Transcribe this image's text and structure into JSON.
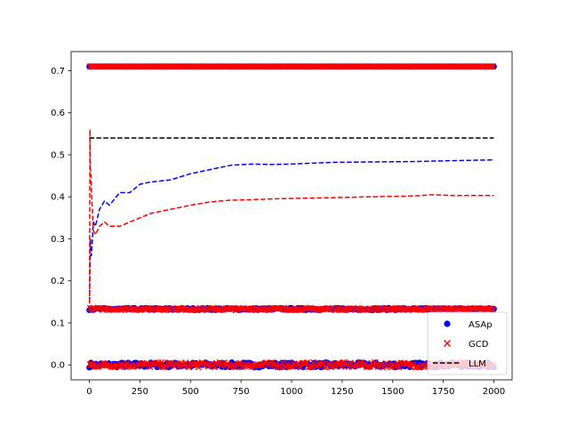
{
  "chart_data": {
    "type": "scatter",
    "title": "",
    "xlabel": "",
    "ylabel": "",
    "xlim": [
      -90,
      2090
    ],
    "ylim": [
      -0.0355,
      0.7455
    ],
    "xticks": [
      0,
      250,
      500,
      750,
      1000,
      1250,
      1500,
      1750,
      2000
    ],
    "yticks": [
      0.0,
      0.1,
      0.2,
      0.3,
      0.4,
      0.5,
      0.6,
      0.7
    ],
    "xtick_labels": [
      "0",
      "250",
      "500",
      "750",
      "1000",
      "1250",
      "1500",
      "1750",
      "2000"
    ],
    "ytick_labels": [
      "0.0",
      "0.1",
      "0.2",
      "0.3",
      "0.4",
      "0.5",
      "0.6",
      "0.7"
    ],
    "grid": false,
    "legend_position": "lower-right",
    "series": [
      {
        "name": "ASAp",
        "kind": "markers",
        "marker": "circle",
        "color": "#0000ff",
        "x_range": [
          0,
          2000
        ],
        "y_levels": [
          0.0,
          0.133,
          0.71
        ]
      },
      {
        "name": "GCD",
        "kind": "markers",
        "marker": "x",
        "color": "#ff0000",
        "x_range": [
          0,
          2000
        ],
        "y_levels": [
          0.0,
          0.133,
          0.71
        ]
      },
      {
        "name": "LLM",
        "kind": "line",
        "style": "dashed",
        "color": "#000000",
        "x": [
          0,
          2000
        ],
        "y": [
          0.54,
          0.54
        ]
      },
      {
        "kind": "line",
        "style": "dashed",
        "color": "#0000ff",
        "x": [
          1,
          5,
          10,
          20,
          30,
          50,
          75,
          100,
          150,
          200,
          250,
          300,
          400,
          500,
          600,
          700,
          800,
          900,
          1000,
          1200,
          1400,
          1600,
          1800,
          2000
        ],
        "y": [
          0.15,
          0.3,
          0.26,
          0.34,
          0.33,
          0.37,
          0.39,
          0.38,
          0.41,
          0.41,
          0.43,
          0.435,
          0.44,
          0.455,
          0.465,
          0.475,
          0.478,
          0.477,
          0.478,
          0.482,
          0.483,
          0.484,
          0.486,
          0.488
        ]
      },
      {
        "kind": "line",
        "style": "dashed",
        "color": "#ff0000",
        "x": [
          1,
          3,
          5,
          8,
          12,
          20,
          30,
          50,
          75,
          100,
          150,
          200,
          250,
          300,
          400,
          500,
          600,
          700,
          800,
          900,
          1000,
          1200,
          1400,
          1600,
          1700,
          1800,
          2000
        ],
        "y": [
          0.13,
          0.56,
          0.47,
          0.45,
          0.4,
          0.32,
          0.31,
          0.33,
          0.34,
          0.33,
          0.33,
          0.34,
          0.35,
          0.36,
          0.37,
          0.38,
          0.388,
          0.392,
          0.393,
          0.395,
          0.396,
          0.398,
          0.4,
          0.402,
          0.405,
          0.403,
          0.403
        ]
      }
    ]
  }
}
